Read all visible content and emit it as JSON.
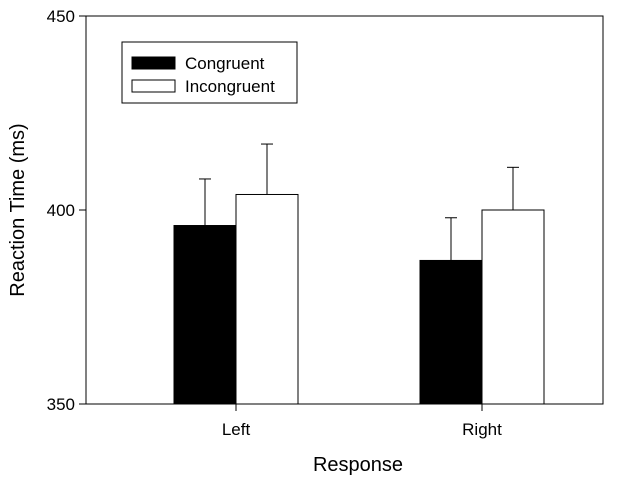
{
  "chart_data": {
    "type": "bar",
    "xlabel": "Response",
    "ylabel": "Reaction Time (ms)",
    "ylim": [
      350,
      450
    ],
    "yticks": [
      350,
      400,
      450
    ],
    "categories": [
      "Left",
      "Right"
    ],
    "series": [
      {
        "name": "Congruent",
        "values": [
          396,
          387
        ],
        "errors": [
          12,
          11
        ],
        "color": "#000000"
      },
      {
        "name": "Incongruent",
        "values": [
          404,
          400
        ],
        "errors": [
          13,
          11
        ],
        "color": "#ffffff"
      }
    ],
    "legend_position": "top-left",
    "grid": false
  }
}
